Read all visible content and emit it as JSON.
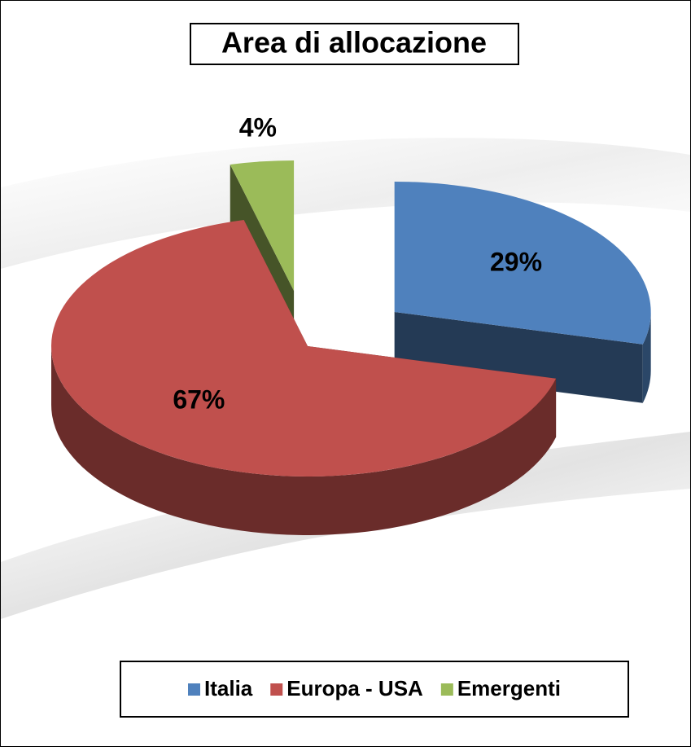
{
  "chart_data": {
    "type": "pie3d",
    "title": "Area di allocazione",
    "categories": [
      "Italia",
      "Europa - USA",
      "Emergenti"
    ],
    "values": [
      29,
      67,
      4
    ],
    "value_labels": [
      "29%",
      "67%",
      "4%"
    ],
    "colors": [
      "#4f81bd",
      "#c0504d",
      "#9bbb59"
    ],
    "legend": "bottom"
  }
}
